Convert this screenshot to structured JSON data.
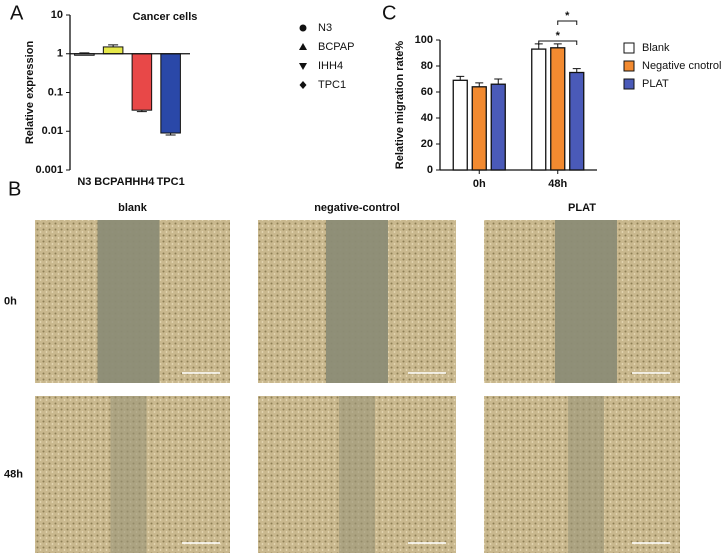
{
  "panels": {
    "a": "A",
    "b": "B",
    "c": "C"
  },
  "chart_data": [
    {
      "type": "bar",
      "title": "Cancer cells",
      "ylabel": "Relative expression",
      "log": true,
      "bar_base": 1,
      "categories": [
        "N3",
        "BCPAP",
        "IHH4",
        "TPC1"
      ],
      "values": [
        1,
        1.5,
        0.035,
        0.009
      ],
      "errors": [
        0.05,
        0.2,
        0.003,
        0.001
      ],
      "colors": [
        "#ffffff",
        "#e6e84a",
        "#e84848",
        "#2a48a8"
      ],
      "ylim": [
        0.001,
        10
      ],
      "yticks": [
        0.001,
        0.01,
        0.1,
        1,
        10
      ],
      "legend": [
        {
          "name": "N3",
          "marker": "circle"
        },
        {
          "name": "BCPAP",
          "marker": "triangle"
        },
        {
          "name": "IHH4",
          "marker": "triangle-down"
        },
        {
          "name": "TPC1",
          "marker": "diamond"
        }
      ]
    },
    {
      "type": "grouped-bar",
      "ylabel": "Relative migration rate%",
      "categories": [
        "0h",
        "48h"
      ],
      "series": [
        {
          "name": "Blank",
          "color": "#ffffff",
          "values": [
            69,
            93
          ],
          "errors": [
            3,
            4
          ]
        },
        {
          "name": "Negative cnotrol",
          "color": "#f28a30",
          "values": [
            64,
            94
          ],
          "errors": [
            3,
            3
          ]
        },
        {
          "name": "PLAT",
          "color": "#4a5ab8",
          "values": [
            66,
            75
          ],
          "errors": [
            4,
            3
          ]
        }
      ],
      "ylim": [
        0,
        100
      ],
      "yticks": [
        0,
        20,
        40,
        60,
        80,
        100
      ],
      "annotations": [
        "*",
        "*"
      ]
    }
  ],
  "micrographs": {
    "columns": [
      "blank",
      "negative-control",
      "PLAT"
    ],
    "rows": [
      "0h",
      "48h"
    ]
  }
}
